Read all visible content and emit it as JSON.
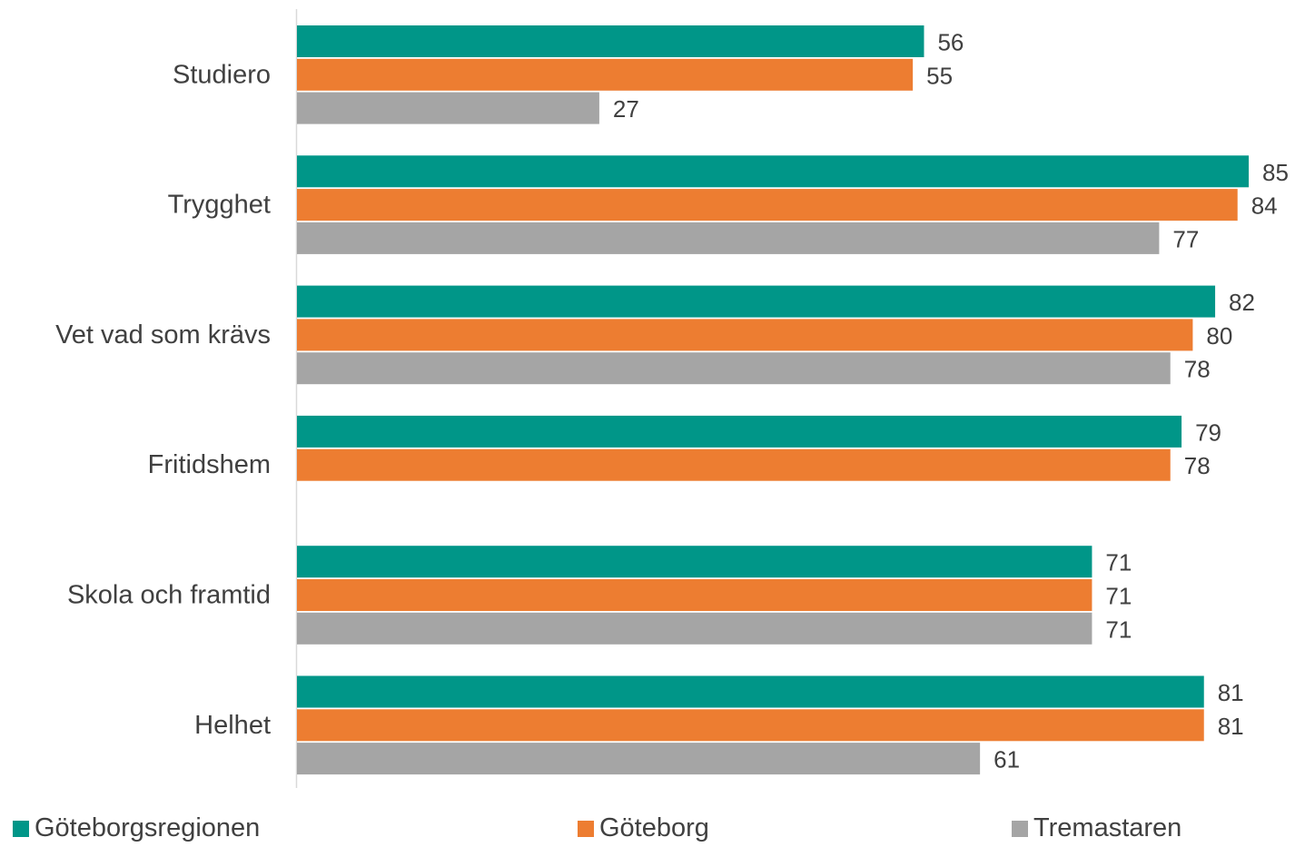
{
  "chart_data": {
    "type": "bar",
    "orientation": "horizontal",
    "categories": [
      "Studiero",
      "Trygghet",
      "Vet vad som krävs",
      "Fritidshem",
      "Skola och framtid",
      "Helhet"
    ],
    "series": [
      {
        "name": "Göteborgsregionen",
        "color": "#009688",
        "values": [
          56,
          85,
          82,
          79,
          71,
          81
        ]
      },
      {
        "name": "Göteborg",
        "color": "#ED7D31",
        "values": [
          55,
          84,
          80,
          78,
          71,
          81
        ]
      },
      {
        "name": "Tremastaren",
        "color": "#A5A5A5",
        "values": [
          27,
          77,
          78,
          null,
          71,
          61
        ]
      }
    ],
    "xlim": [
      0,
      85
    ],
    "grid": false,
    "legend_position": "bottom",
    "data_labels": true
  }
}
